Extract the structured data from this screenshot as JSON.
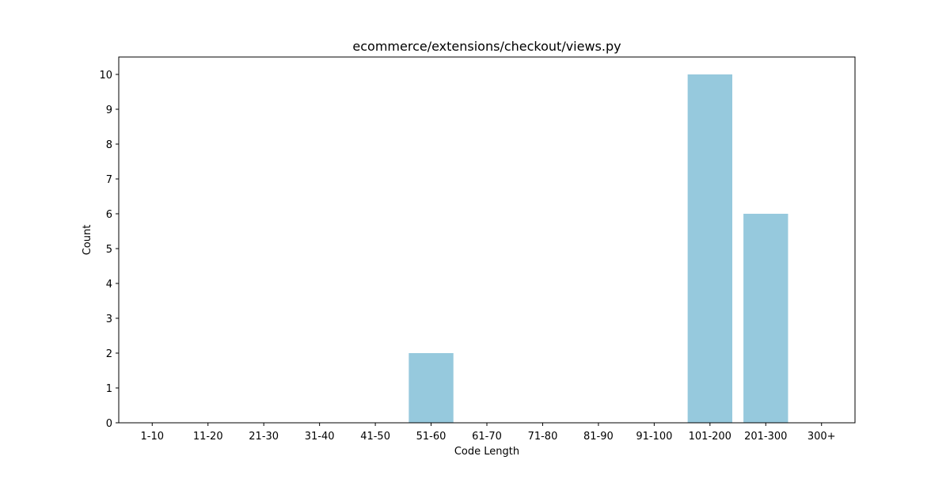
{
  "chart_data": {
    "type": "bar",
    "title": "ecommerce/extensions/checkout/views.py",
    "xlabel": "Code Length",
    "ylabel": "Count",
    "categories": [
      "1-10",
      "11-20",
      "21-30",
      "31-40",
      "41-50",
      "51-60",
      "61-70",
      "71-80",
      "81-90",
      "91-100",
      "101-200",
      "201-300",
      "300+"
    ],
    "values": [
      0,
      0,
      0,
      0,
      0,
      2,
      0,
      0,
      0,
      0,
      10,
      6,
      0
    ],
    "ylim": [
      0,
      10.5
    ],
    "yticks": [
      0,
      1,
      2,
      3,
      4,
      5,
      6,
      7,
      8,
      9,
      10
    ],
    "grid": false,
    "bar_color": "#96c9dd"
  }
}
